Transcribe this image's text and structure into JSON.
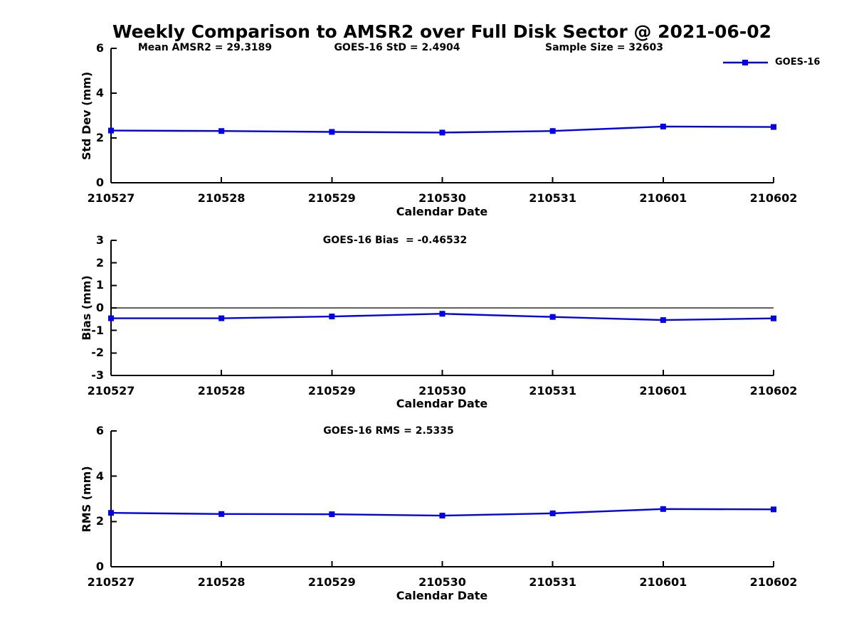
{
  "title": "Weekly Comparison to AMSR2 over Full Disk Sector @ 2021-06-02",
  "legend": {
    "label": "GOES-16",
    "position": "top-right"
  },
  "colors": {
    "series": "#0000EE",
    "axis": "#000000",
    "text": "#000000",
    "background": "#FFFFFF"
  },
  "chart_data": [
    {
      "type": "line",
      "id": "std-dev",
      "annotations": [
        "Mean AMSR2 = 29.3189",
        "GOES-16 StD = 2.4904",
        "Sample Size = 32603"
      ],
      "xlabel": "Calendar Date",
      "ylabel": "Std Dev (mm)",
      "categories": [
        "210527",
        "210528",
        "210529",
        "210530",
        "210531",
        "210601",
        "210602"
      ],
      "series": [
        {
          "name": "GOES-16",
          "values": [
            2.33,
            2.31,
            2.27,
            2.24,
            2.31,
            2.51,
            2.4904
          ]
        }
      ],
      "ylim": [
        0,
        6
      ],
      "yticks": [
        0,
        2,
        4,
        6
      ],
      "grid": false,
      "zero_line": false
    },
    {
      "type": "line",
      "id": "bias",
      "annotations": [
        "GOES-16 Bias  = -0.46532"
      ],
      "xlabel": "Calendar Date",
      "ylabel": "Bias (mm)",
      "categories": [
        "210527",
        "210528",
        "210529",
        "210530",
        "210531",
        "210601",
        "210602"
      ],
      "series": [
        {
          "name": "GOES-16",
          "values": [
            -0.46,
            -0.46,
            -0.38,
            -0.26,
            -0.4,
            -0.54,
            -0.46532
          ]
        }
      ],
      "ylim": [
        -3,
        3
      ],
      "yticks": [
        3,
        2,
        1,
        0,
        -1,
        -2,
        -3
      ],
      "grid": false,
      "zero_line": true
    },
    {
      "type": "line",
      "id": "rms",
      "annotations": [
        "GOES-16 RMS = 2.5335"
      ],
      "xlabel": "Calendar Date",
      "ylabel": "RMS (mm)",
      "categories": [
        "210527",
        "210528",
        "210529",
        "210530",
        "210531",
        "210601",
        "210602"
      ],
      "series": [
        {
          "name": "GOES-16",
          "values": [
            2.38,
            2.33,
            2.32,
            2.26,
            2.36,
            2.55,
            2.5335
          ]
        }
      ],
      "ylim": [
        0,
        6
      ],
      "yticks": [
        0,
        2,
        4,
        6
      ],
      "grid": false,
      "zero_line": false
    }
  ]
}
